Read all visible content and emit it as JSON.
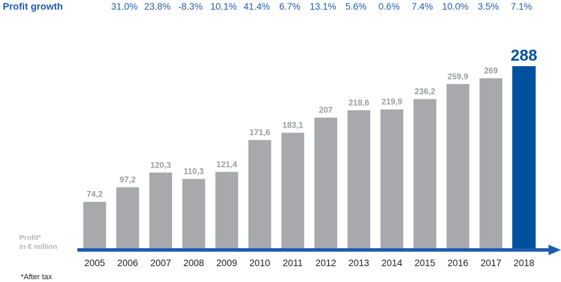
{
  "chart_data": {
    "type": "bar",
    "categories": [
      "2005",
      "2006",
      "2007",
      "2008",
      "2009",
      "2010",
      "2011",
      "2012",
      "2013",
      "2014",
      "2015",
      "2016",
      "2017",
      "2018"
    ],
    "values": [
      74.2,
      97.2,
      120.3,
      110.3,
      121.4,
      171.6,
      183.1,
      207,
      218.6,
      219.9,
      236.2,
      259.9,
      269,
      288
    ],
    "value_labels": [
      "74,2",
      "97,2",
      "120,3",
      "110,3",
      "121,4",
      "171,6",
      "183,1",
      "207",
      "218,6",
      "219,9",
      "236,2",
      "259,9",
      "269",
      "288"
    ],
    "growth_title": "Profit growth",
    "growth_labels": [
      "31.0%",
      "23.8%",
      "-8.3%",
      "10.1%",
      "41.4%",
      "6.7%",
      "13.1%",
      "5.6%",
      "0.6%",
      "7.4%",
      "10.0%",
      "3.5%",
      "7.1%"
    ],
    "ylabel_lines": [
      "Profit*",
      "in € million"
    ],
    "footnote": "*After tax",
    "highlight_index": 13,
    "ylim": [
      0,
      300
    ],
    "colors": {
      "bar": "#a7a9ac",
      "highlight": "#00509e",
      "axis": "#1f5cb0",
      "growth_text": "#1f5cb0",
      "growth_title": "#1f5cb0",
      "value_label": "#9a9ca0",
      "ylabel": "#b3b5b8",
      "year_text": "#222222",
      "footnote": "#222222"
    }
  }
}
